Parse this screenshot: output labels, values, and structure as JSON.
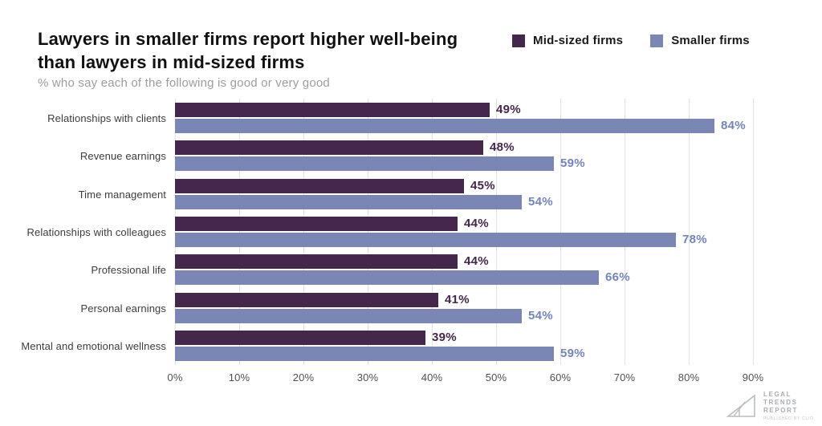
{
  "header": {
    "title_line1": "Lawyers in smaller firms report higher well-being",
    "title_line2": "than lawyers in mid-sized firms",
    "subtitle": "% who say each of the following is good or very good"
  },
  "legend": [
    {
      "label": "Mid-sized firms",
      "color": "#44274a"
    },
    {
      "label": "Smaller firms",
      "color": "#7a87b5"
    }
  ],
  "chart_data": {
    "type": "bar",
    "orientation": "horizontal",
    "title": "Lawyers in smaller firms report higher well-being than lawyers in mid-sized firms",
    "subtitle": "% who say each of the following is good or very good",
    "categories": [
      "Relationships with clients",
      "Revenue earnings",
      "Time management",
      "Relationships with colleagues",
      "Professional life",
      "Personal earnings",
      "Mental and emotional wellness"
    ],
    "series": [
      {
        "name": "Mid-sized firms",
        "color": "#44274a",
        "label_color": "#44274a",
        "values": [
          49,
          48,
          45,
          44,
          44,
          41,
          39
        ]
      },
      {
        "name": "Smaller firms",
        "color": "#7a87b5",
        "label_color": "#7384bc",
        "values": [
          84,
          59,
          54,
          78,
          66,
          54,
          59
        ]
      }
    ],
    "value_suffix": "%",
    "xlabel": "",
    "ylabel": "",
    "xlim": [
      0,
      90
    ],
    "x_ticks": [
      "0%",
      "10%",
      "20%",
      "30%",
      "40%",
      "50%",
      "60%",
      "70%",
      "80%",
      "90%"
    ],
    "grid": "vertical",
    "legend_position": "top-right"
  },
  "footer_logo": {
    "lines": [
      "LEGAL",
      "TRENDS",
      "REPORT"
    ],
    "tagline": "PUBLISHED BY CLIO"
  }
}
